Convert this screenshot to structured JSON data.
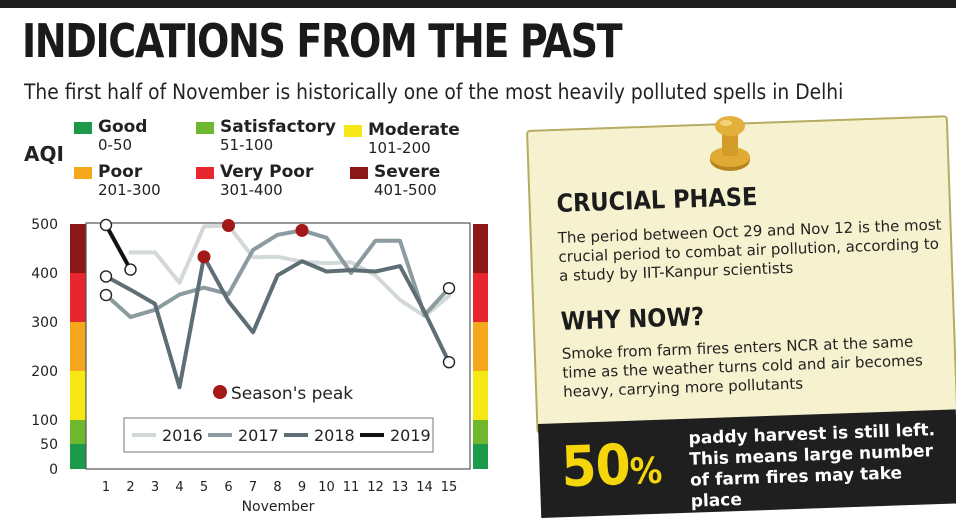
{
  "header": {
    "title": "INDICATIONS FROM THE PAST",
    "subtitle": "The first half of November is historically one of the most heavily polluted spells in Delhi"
  },
  "aqi_legend": {
    "label": "AQI",
    "items": [
      {
        "name": "Good",
        "range": "0-50",
        "color": "#1a9a4a"
      },
      {
        "name": "Satisfactory",
        "range": "51-100",
        "color": "#6fb82e"
      },
      {
        "name": "Moderate",
        "range": "101-200",
        "color": "#f5e814"
      },
      {
        "name": "Poor",
        "range": "201-300",
        "color": "#f5a81c"
      },
      {
        "name": "Very Poor",
        "range": "301-400",
        "color": "#e8262d"
      },
      {
        "name": "Severe",
        "range": "401-500",
        "color": "#8c1717"
      }
    ]
  },
  "chart_data": {
    "type": "line",
    "xlabel": "November",
    "ylabel": "",
    "x": [
      1,
      2,
      3,
      4,
      5,
      6,
      7,
      8,
      9,
      10,
      11,
      12,
      13,
      14,
      15
    ],
    "y_ticks": [
      0,
      50,
      100,
      200,
      300,
      400,
      500
    ],
    "ylim": [
      0,
      500
    ],
    "series": [
      {
        "name": "2016",
        "color": "#d3d8d8",
        "width": 4,
        "points": [
          [
            2,
            442
          ],
          [
            3,
            442
          ],
          [
            4,
            380
          ],
          [
            5,
            495
          ],
          [
            6,
            497
          ],
          [
            7,
            432
          ],
          [
            8,
            433
          ],
          [
            9,
            423
          ],
          [
            10,
            420
          ],
          [
            11,
            422
          ],
          [
            12,
            395
          ],
          [
            13,
            345
          ],
          [
            14,
            312
          ],
          [
            15,
            353
          ]
        ]
      },
      {
        "name": "2017",
        "color": "#8b9ba0",
        "width": 4,
        "points": [
          [
            1,
            355
          ],
          [
            2,
            310
          ],
          [
            3,
            325
          ],
          [
            4,
            356
          ],
          [
            5,
            370
          ],
          [
            6,
            357
          ],
          [
            7,
            447
          ],
          [
            8,
            478
          ],
          [
            9,
            487
          ],
          [
            10,
            472
          ],
          [
            11,
            400
          ],
          [
            12,
            466
          ],
          [
            13,
            466
          ],
          [
            14,
            314
          ],
          [
            15,
            369
          ]
        ]
      },
      {
        "name": "2018",
        "color": "#5f6e74",
        "width": 4,
        "points": [
          [
            1,
            393
          ],
          [
            2,
            366
          ],
          [
            3,
            337
          ],
          [
            4,
            167
          ],
          [
            5,
            433
          ],
          [
            6,
            342
          ],
          [
            7,
            279
          ],
          [
            8,
            395
          ],
          [
            9,
            424
          ],
          [
            10,
            403
          ],
          [
            11,
            406
          ],
          [
            12,
            403
          ],
          [
            13,
            414
          ],
          [
            14,
            321
          ],
          [
            15,
            218
          ]
        ]
      },
      {
        "name": "2019",
        "color": "#111111",
        "width": 4,
        "points": [
          [
            1,
            498
          ],
          [
            2,
            407
          ]
        ]
      }
    ],
    "season_peaks": [
      [
        5,
        433
      ],
      [
        6,
        497
      ],
      [
        9,
        487
      ]
    ],
    "hollow_markers": [
      [
        1,
        498
      ],
      [
        1,
        393
      ],
      [
        1,
        355
      ],
      [
        2,
        407
      ],
      [
        15,
        369
      ],
      [
        15,
        218
      ]
    ],
    "annotation": "Season's peak"
  },
  "callout": {
    "heading1": "CRUCIAL PHASE",
    "text1": "The period between Oct 29 and Nov 12 is the most crucial period to combat air pollution, according to a study by IIT-Kanpur scientists",
    "heading2": "WHY NOW?",
    "text2": "Smoke from farm fires enters NCR at the same time as the weather turns cold and air becomes heavy, carrying more pollutants"
  },
  "stat": {
    "value": "50",
    "unit": "%",
    "text": "paddy harvest is still left. This means large number of farm fires may take place"
  }
}
